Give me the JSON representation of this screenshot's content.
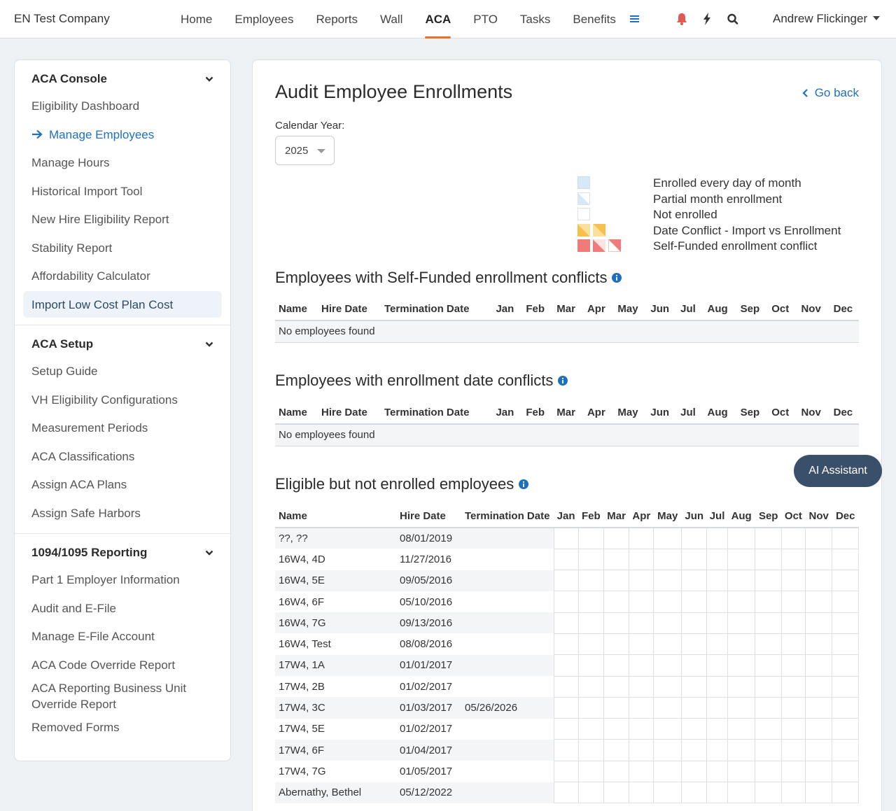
{
  "company": "EN Test Company",
  "nav": {
    "items": [
      "Home",
      "Employees",
      "Reports",
      "Wall",
      "ACA",
      "PTO",
      "Tasks",
      "Benefits"
    ],
    "active": "ACA",
    "user": "Andrew Flickinger",
    "icons": [
      "menu-icon",
      "bell-icon",
      "bolt-icon",
      "search-icon"
    ]
  },
  "sidebar": {
    "sections": [
      {
        "title": "ACA Console",
        "items": [
          "Eligibility Dashboard",
          "Manage Employees",
          "Manage Hours",
          "Historical Import Tool",
          "New Hire Eligibility Report",
          "Stability Report",
          "Affordability Calculator",
          "Import Low Cost Plan Cost"
        ]
      },
      {
        "title": "ACA Setup",
        "items": [
          "Setup Guide",
          "VH Eligibility Configurations",
          "Measurement Periods",
          "ACA Classifications",
          "Assign ACA Plans",
          "Assign Safe Harbors"
        ]
      },
      {
        "title": "1094/1095 Reporting",
        "items": [
          "Part 1 Employer Information",
          "Audit and E-File",
          "Manage E-File Account",
          "ACA Code Override Report",
          "ACA Reporting Business Unit Override Report",
          "Removed Forms"
        ]
      }
    ],
    "current": "Manage Employees",
    "highlighted": "Import Low Cost Plan Cost"
  },
  "main": {
    "title": "Audit Employee Enrollments",
    "go_back": "Go back",
    "calendar_label": "Calendar Year:",
    "year": "2025",
    "legend": [
      "Enrolled every day of month",
      "Partial month enrollment",
      "Not enrolled",
      "Date Conflict - Import vs Enrollment",
      "Self-Funded enrollment conflict"
    ],
    "self_funded": {
      "title": "Employees with Self-Funded enrollment conflicts",
      "empty": "No employees found"
    },
    "date_conflicts": {
      "title": "Employees with enrollment date conflicts",
      "empty": "No employees found"
    },
    "eligible": {
      "title": "Eligible but not enrolled employees",
      "rows": [
        [
          "??, ??",
          "08/01/2019",
          ""
        ],
        [
          "16W4, 4D",
          "11/27/2016",
          ""
        ],
        [
          "16W4, 5E",
          "09/05/2016",
          ""
        ],
        [
          "16W4, 6F",
          "05/10/2016",
          ""
        ],
        [
          "16W4, 7G",
          "09/13/2016",
          ""
        ],
        [
          "16W4, Test",
          "08/08/2016",
          ""
        ],
        [
          "17W4, 1A",
          "01/01/2017",
          ""
        ],
        [
          "17W4, 2B",
          "01/02/2017",
          ""
        ],
        [
          "17W4, 3C",
          "01/03/2017",
          "05/26/2026"
        ],
        [
          "17W4, 5E",
          "01/02/2017",
          ""
        ],
        [
          "17W4, 6F",
          "01/04/2017",
          ""
        ],
        [
          "17W4, 7G",
          "01/05/2017",
          ""
        ],
        [
          "Abernathy, Bethel",
          "05/12/2022",
          ""
        ]
      ]
    },
    "columns": [
      "Name",
      "Hire Date",
      "Termination Date"
    ],
    "months": [
      "Jan",
      "Feb",
      "Mar",
      "Apr",
      "May",
      "Jun",
      "Jul",
      "Aug",
      "Sep",
      "Oct",
      "Nov",
      "Dec"
    ]
  },
  "ai_assistant": "AI Assistant",
  "colors": {
    "accent": "#e8702a",
    "link": "#1f6fbf",
    "enrolled": "#d7e9f7",
    "date_conflict": "#f7c04a",
    "self_funded_conflict": "#f07b78",
    "ai_button": "#3a4f6a",
    "alert": "#e05a4f"
  }
}
